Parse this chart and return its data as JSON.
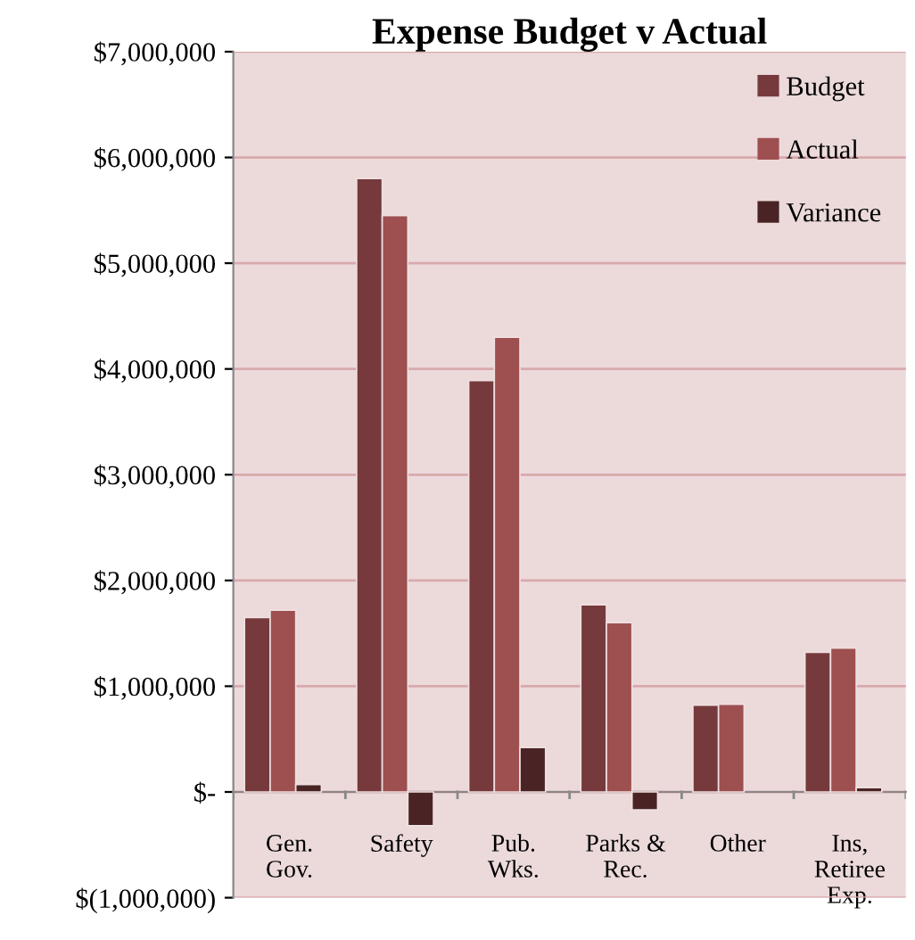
{
  "chart_data": {
    "type": "bar",
    "title": "Expense Budget v Actual",
    "categories": [
      "Gen.\nGov.",
      "Safety",
      "Pub.\nWks.",
      "Parks &\nRec.",
      "Other",
      "Ins,\nRetiree\nExp."
    ],
    "series": [
      {
        "name": "Budget",
        "color": "#763a3c",
        "values": [
          1650000,
          5800000,
          3890000,
          1770000,
          820000,
          1320000
        ]
      },
      {
        "name": "Actual",
        "color": "#9e4f50",
        "values": [
          1720000,
          5450000,
          4300000,
          1600000,
          830000,
          1360000
        ]
      },
      {
        "name": "Variance",
        "color": "#4a2425",
        "values": [
          70000,
          -320000,
          420000,
          -170000,
          null,
          40000
        ]
      }
    ],
    "ylim": [
      -1000000,
      7000000
    ],
    "yticks": [
      {
        "value": -1000000,
        "label": "$(1,000,000)"
      },
      {
        "value": 0,
        "label": "$-"
      },
      {
        "value": 1000000,
        "label": "$1,000,000"
      },
      {
        "value": 2000000,
        "label": "$2,000,000"
      },
      {
        "value": 3000000,
        "label": "$3,000,000"
      },
      {
        "value": 4000000,
        "label": "$4,000,000"
      },
      {
        "value": 5000000,
        "label": "$5,000,000"
      },
      {
        "value": 6000000,
        "label": "$6,000,000"
      },
      {
        "value": 7000000,
        "label": "$7,000,000"
      }
    ],
    "grid": "y",
    "legend": "top right"
  }
}
